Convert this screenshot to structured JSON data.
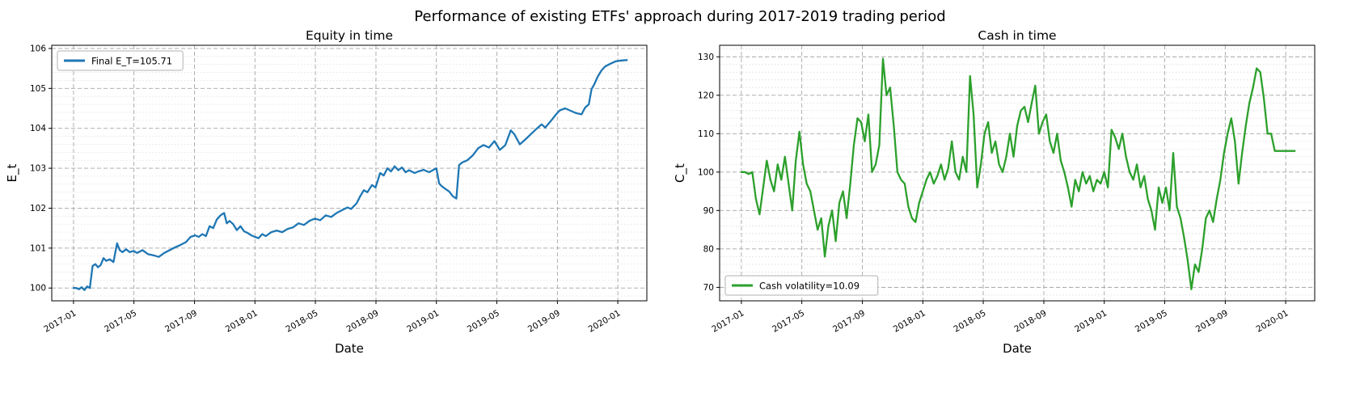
{
  "figure": {
    "title": "Performance of existing ETFs' approach during 2017-2019 trading period"
  },
  "chart_data": [
    {
      "id": "equity",
      "type": "line",
      "title": "Equity in time",
      "xlabel": "Date",
      "ylabel": "E_t",
      "line_color": "#1f77b4",
      "legend": {
        "label": "Final E_T=105.71",
        "position": "nw"
      },
      "grid": true,
      "xlim": [
        2016.88,
        2020.16
      ],
      "ylim": [
        99.68,
        106.08
      ],
      "yticks": [
        100,
        101,
        102,
        103,
        104,
        105,
        106
      ],
      "y_minor_step": 0.2,
      "xtick_values": [
        2017.0,
        2017.333,
        2017.667,
        2018.0,
        2018.333,
        2018.667,
        2019.0,
        2019.333,
        2019.667,
        2020.0
      ],
      "xtick_labels": [
        "2017-01",
        "2017-05",
        "2017-09",
        "2018-01",
        "2018-05",
        "2018-09",
        "2019-01",
        "2019-05",
        "2019-09",
        "2020-01"
      ],
      "points": [
        [
          2017.0,
          100.0
        ],
        [
          2017.015,
          100.0
        ],
        [
          2017.03,
          99.97
        ],
        [
          2017.045,
          100.02
        ],
        [
          2017.06,
          99.95
        ],
        [
          2017.075,
          100.04
        ],
        [
          2017.09,
          100.0
        ],
        [
          2017.105,
          100.55
        ],
        [
          2017.12,
          100.6
        ],
        [
          2017.135,
          100.52
        ],
        [
          2017.15,
          100.58
        ],
        [
          2017.165,
          100.75
        ],
        [
          2017.18,
          100.68
        ],
        [
          2017.2,
          100.72
        ],
        [
          2017.22,
          100.65
        ],
        [
          2017.24,
          101.12
        ],
        [
          2017.255,
          100.95
        ],
        [
          2017.27,
          100.9
        ],
        [
          2017.29,
          100.97
        ],
        [
          2017.31,
          100.9
        ],
        [
          2017.33,
          100.93
        ],
        [
          2017.35,
          100.88
        ],
        [
          2017.38,
          100.95
        ],
        [
          2017.41,
          100.85
        ],
        [
          2017.44,
          100.82
        ],
        [
          2017.47,
          100.78
        ],
        [
          2017.5,
          100.88
        ],
        [
          2017.53,
          100.95
        ],
        [
          2017.56,
          101.02
        ],
        [
          2017.59,
          101.08
        ],
        [
          2017.62,
          101.15
        ],
        [
          2017.645,
          101.28
        ],
        [
          2017.67,
          101.32
        ],
        [
          2017.69,
          101.28
        ],
        [
          2017.71,
          101.35
        ],
        [
          2017.73,
          101.3
        ],
        [
          2017.75,
          101.55
        ],
        [
          2017.77,
          101.5
        ],
        [
          2017.79,
          101.72
        ],
        [
          2017.81,
          101.82
        ],
        [
          2017.83,
          101.88
        ],
        [
          2017.845,
          101.62
        ],
        [
          2017.86,
          101.68
        ],
        [
          2017.88,
          101.6
        ],
        [
          2017.9,
          101.45
        ],
        [
          2017.92,
          101.55
        ],
        [
          2017.94,
          101.42
        ],
        [
          2017.96,
          101.38
        ],
        [
          2017.98,
          101.32
        ],
        [
          2018.0,
          101.28
        ],
        [
          2018.02,
          101.25
        ],
        [
          2018.04,
          101.35
        ],
        [
          2018.06,
          101.3
        ],
        [
          2018.09,
          101.4
        ],
        [
          2018.12,
          101.44
        ],
        [
          2018.15,
          101.4
        ],
        [
          2018.18,
          101.48
        ],
        [
          2018.21,
          101.52
        ],
        [
          2018.24,
          101.62
        ],
        [
          2018.27,
          101.58
        ],
        [
          2018.3,
          101.68
        ],
        [
          2018.33,
          101.74
        ],
        [
          2018.36,
          101.7
        ],
        [
          2018.39,
          101.82
        ],
        [
          2018.42,
          101.78
        ],
        [
          2018.45,
          101.88
        ],
        [
          2018.48,
          101.95
        ],
        [
          2018.51,
          102.02
        ],
        [
          2018.53,
          101.98
        ],
        [
          2018.56,
          102.12
        ],
        [
          2018.58,
          102.3
        ],
        [
          2018.6,
          102.45
        ],
        [
          2018.62,
          102.4
        ],
        [
          2018.645,
          102.58
        ],
        [
          2018.665,
          102.52
        ],
        [
          2018.69,
          102.88
        ],
        [
          2018.71,
          102.82
        ],
        [
          2018.73,
          103.0
        ],
        [
          2018.75,
          102.92
        ],
        [
          2018.77,
          103.05
        ],
        [
          2018.79,
          102.95
        ],
        [
          2018.81,
          103.02
        ],
        [
          2018.83,
          102.9
        ],
        [
          2018.85,
          102.95
        ],
        [
          2018.88,
          102.88
        ],
        [
          2018.9,
          102.92
        ],
        [
          2018.93,
          102.96
        ],
        [
          2018.96,
          102.9
        ],
        [
          2018.98,
          102.95
        ],
        [
          2019.0,
          103.0
        ],
        [
          2019.015,
          102.62
        ],
        [
          2019.03,
          102.55
        ],
        [
          2019.05,
          102.48
        ],
        [
          2019.07,
          102.42
        ],
        [
          2019.09,
          102.3
        ],
        [
          2019.11,
          102.24
        ],
        [
          2019.125,
          103.08
        ],
        [
          2019.14,
          103.14
        ],
        [
          2019.17,
          103.2
        ],
        [
          2019.2,
          103.32
        ],
        [
          2019.23,
          103.5
        ],
        [
          2019.26,
          103.58
        ],
        [
          2019.29,
          103.52
        ],
        [
          2019.32,
          103.68
        ],
        [
          2019.35,
          103.46
        ],
        [
          2019.38,
          103.58
        ],
        [
          2019.41,
          103.95
        ],
        [
          2019.43,
          103.85
        ],
        [
          2019.46,
          103.6
        ],
        [
          2019.49,
          103.72
        ],
        [
          2019.52,
          103.85
        ],
        [
          2019.55,
          103.98
        ],
        [
          2019.58,
          104.1
        ],
        [
          2019.6,
          104.02
        ],
        [
          2019.63,
          104.18
        ],
        [
          2019.66,
          104.35
        ],
        [
          2019.68,
          104.45
        ],
        [
          2019.71,
          104.5
        ],
        [
          2019.74,
          104.44
        ],
        [
          2019.77,
          104.38
        ],
        [
          2019.8,
          104.35
        ],
        [
          2019.82,
          104.52
        ],
        [
          2019.84,
          104.6
        ],
        [
          2019.855,
          104.98
        ],
        [
          2019.87,
          105.1
        ],
        [
          2019.89,
          105.3
        ],
        [
          2019.91,
          105.45
        ],
        [
          2019.93,
          105.55
        ],
        [
          2019.96,
          105.62
        ],
        [
          2019.99,
          105.68
        ],
        [
          2020.02,
          105.7
        ],
        [
          2020.05,
          105.71
        ]
      ]
    },
    {
      "id": "cash",
      "type": "line",
      "title": "Cash in time",
      "xlabel": "Date",
      "ylabel": "C_t",
      "line_color": "#2ca02c",
      "legend": {
        "label": "Cash volatility=10.09",
        "position": "sw"
      },
      "grid": true,
      "xlim": [
        2016.88,
        2020.16
      ],
      "ylim": [
        66.5,
        133.0
      ],
      "yticks": [
        70,
        80,
        90,
        100,
        110,
        120,
        130
      ],
      "y_minor_step": 2,
      "xtick_values": [
        2017.0,
        2017.333,
        2017.667,
        2018.0,
        2018.333,
        2018.667,
        2019.0,
        2019.333,
        2019.667,
        2020.0
      ],
      "xtick_labels": [
        "2017-01",
        "2017-05",
        "2017-09",
        "2018-01",
        "2018-05",
        "2018-09",
        "2019-01",
        "2019-05",
        "2019-09",
        "2020-01"
      ],
      "points": [
        [
          2017.0,
          100.0
        ],
        [
          2017.02,
          100.0
        ],
        [
          2017.04,
          99.5
        ],
        [
          2017.06,
          100.0
        ],
        [
          2017.08,
          93.0
        ],
        [
          2017.1,
          89.0
        ],
        [
          2017.12,
          96.0
        ],
        [
          2017.14,
          103.0
        ],
        [
          2017.16,
          98.0
        ],
        [
          2017.18,
          95.0
        ],
        [
          2017.2,
          102.0
        ],
        [
          2017.22,
          98.0
        ],
        [
          2017.24,
          104.0
        ],
        [
          2017.26,
          97.0
        ],
        [
          2017.28,
          90.0
        ],
        [
          2017.3,
          103.0
        ],
        [
          2017.32,
          110.5
        ],
        [
          2017.34,
          102.0
        ],
        [
          2017.36,
          97.0
        ],
        [
          2017.38,
          95.0
        ],
        [
          2017.4,
          90.0
        ],
        [
          2017.42,
          85.0
        ],
        [
          2017.44,
          88.0
        ],
        [
          2017.46,
          78.0
        ],
        [
          2017.48,
          86.0
        ],
        [
          2017.5,
          90.0
        ],
        [
          2017.52,
          82.0
        ],
        [
          2017.54,
          92.0
        ],
        [
          2017.56,
          95.0
        ],
        [
          2017.58,
          88.0
        ],
        [
          2017.6,
          97.0
        ],
        [
          2017.62,
          107.0
        ],
        [
          2017.64,
          114.0
        ],
        [
          2017.66,
          113.0
        ],
        [
          2017.68,
          108.0
        ],
        [
          2017.7,
          115.0
        ],
        [
          2017.72,
          100.0
        ],
        [
          2017.74,
          102.0
        ],
        [
          2017.76,
          107.0
        ],
        [
          2017.78,
          129.5
        ],
        [
          2017.8,
          120.0
        ],
        [
          2017.82,
          122.0
        ],
        [
          2017.84,
          112.0
        ],
        [
          2017.86,
          100.0
        ],
        [
          2017.88,
          98.0
        ],
        [
          2017.9,
          97.0
        ],
        [
          2017.92,
          91.0
        ],
        [
          2017.94,
          88.0
        ],
        [
          2017.96,
          87.0
        ],
        [
          2017.98,
          92.0
        ],
        [
          2018.0,
          95.0
        ],
        [
          2018.02,
          98.0
        ],
        [
          2018.04,
          100.0
        ],
        [
          2018.06,
          97.0
        ],
        [
          2018.08,
          99.0
        ],
        [
          2018.1,
          102.0
        ],
        [
          2018.12,
          98.0
        ],
        [
          2018.14,
          101.0
        ],
        [
          2018.16,
          108.0
        ],
        [
          2018.18,
          100.0
        ],
        [
          2018.2,
          98.0
        ],
        [
          2018.22,
          104.0
        ],
        [
          2018.24,
          100.0
        ],
        [
          2018.26,
          125.0
        ],
        [
          2018.28,
          115.0
        ],
        [
          2018.3,
          96.0
        ],
        [
          2018.32,
          102.0
        ],
        [
          2018.34,
          110.0
        ],
        [
          2018.36,
          113.0
        ],
        [
          2018.38,
          105.0
        ],
        [
          2018.4,
          108.0
        ],
        [
          2018.42,
          102.0
        ],
        [
          2018.44,
          100.0
        ],
        [
          2018.46,
          104.0
        ],
        [
          2018.48,
          110.0
        ],
        [
          2018.5,
          104.0
        ],
        [
          2018.52,
          112.0
        ],
        [
          2018.54,
          116.0
        ],
        [
          2018.56,
          117.0
        ],
        [
          2018.58,
          113.0
        ],
        [
          2018.6,
          118.0
        ],
        [
          2018.62,
          122.5
        ],
        [
          2018.64,
          110.0
        ],
        [
          2018.66,
          113.0
        ],
        [
          2018.68,
          115.0
        ],
        [
          2018.7,
          108.0
        ],
        [
          2018.72,
          105.0
        ],
        [
          2018.74,
          110.0
        ],
        [
          2018.76,
          103.0
        ],
        [
          2018.78,
          100.0
        ],
        [
          2018.8,
          96.0
        ],
        [
          2018.82,
          91.0
        ],
        [
          2018.84,
          98.0
        ],
        [
          2018.86,
          95.0
        ],
        [
          2018.88,
          100.0
        ],
        [
          2018.9,
          97.0
        ],
        [
          2018.92,
          99.0
        ],
        [
          2018.94,
          95.0
        ],
        [
          2018.96,
          98.0
        ],
        [
          2018.98,
          97.0
        ],
        [
          2019.0,
          100.0
        ],
        [
          2019.02,
          96.0
        ],
        [
          2019.04,
          111.0
        ],
        [
          2019.06,
          109.0
        ],
        [
          2019.08,
          106.0
        ],
        [
          2019.1,
          110.0
        ],
        [
          2019.12,
          104.0
        ],
        [
          2019.14,
          100.0
        ],
        [
          2019.16,
          98.0
        ],
        [
          2019.18,
          102.0
        ],
        [
          2019.2,
          96.0
        ],
        [
          2019.22,
          99.0
        ],
        [
          2019.24,
          93.0
        ],
        [
          2019.26,
          90.0
        ],
        [
          2019.28,
          85.0
        ],
        [
          2019.3,
          96.0
        ],
        [
          2019.32,
          92.0
        ],
        [
          2019.34,
          96.0
        ],
        [
          2019.36,
          90.0
        ],
        [
          2019.38,
          105.0
        ],
        [
          2019.4,
          91.0
        ],
        [
          2019.42,
          88.0
        ],
        [
          2019.44,
          83.0
        ],
        [
          2019.46,
          77.0
        ],
        [
          2019.48,
          69.5
        ],
        [
          2019.5,
          76.0
        ],
        [
          2019.52,
          74.0
        ],
        [
          2019.54,
          80.0
        ],
        [
          2019.56,
          88.0
        ],
        [
          2019.58,
          90.0
        ],
        [
          2019.6,
          87.0
        ],
        [
          2019.62,
          93.0
        ],
        [
          2019.64,
          98.0
        ],
        [
          2019.66,
          105.0
        ],
        [
          2019.68,
          110.0
        ],
        [
          2019.7,
          114.0
        ],
        [
          2019.72,
          108.0
        ],
        [
          2019.74,
          97.0
        ],
        [
          2019.76,
          105.0
        ],
        [
          2019.78,
          112.0
        ],
        [
          2019.8,
          118.0
        ],
        [
          2019.82,
          122.0
        ],
        [
          2019.84,
          127.0
        ],
        [
          2019.86,
          126.0
        ],
        [
          2019.88,
          119.0
        ],
        [
          2019.9,
          110.0
        ],
        [
          2019.92,
          110.0
        ],
        [
          2019.94,
          105.5
        ],
        [
          2019.98,
          105.5
        ],
        [
          2020.02,
          105.5
        ],
        [
          2020.05,
          105.5
        ]
      ]
    }
  ]
}
